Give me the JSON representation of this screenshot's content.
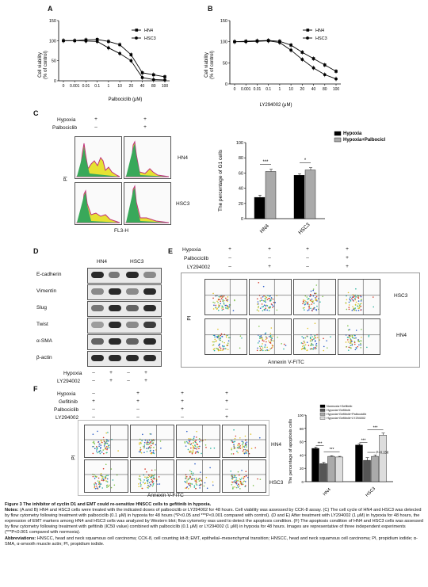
{
  "figure": {
    "panel_a": {
      "label": "A",
      "ylabel_line1": "Cell viability",
      "ylabel_line2": "(% of control)",
      "xlabel": "Palbociclib (μM)"
    },
    "panel_b": {
      "label": "B",
      "ylabel_line1": "Cell viability",
      "ylabel_line2": "(% of control)",
      "xlabel": "LY294002 (μM)"
    },
    "panel_c": {
      "label": "C",
      "row_labels": [
        "Hypoxia",
        "Palbociclib"
      ],
      "col1_signs": [
        "+",
        "–"
      ],
      "col2_signs": [
        "+",
        "+"
      ],
      "cell_labels": [
        "HN4",
        "HSC3"
      ],
      "ylabel_flow": "PI",
      "xlabel_flow": "FL3-H",
      "bar_ylabel": "The percentage of G1 cells",
      "sig": [
        "***",
        "*"
      ]
    },
    "panel_d": {
      "label": "D",
      "col_labels": [
        "HN4",
        "HSC3"
      ],
      "proteins": [
        "E-cadherin",
        "Vimentin",
        "Slug",
        "Twist",
        "α-SMA",
        "β-actin"
      ],
      "rows": [
        {
          "name": "Hypoxia",
          "signs": [
            "–",
            "+",
            "–",
            "+"
          ]
        },
        {
          "name": "LY294002",
          "signs": [
            "–",
            "+",
            "–",
            "+"
          ]
        }
      ]
    },
    "panel_e": {
      "label": "E",
      "rows": [
        {
          "name": "Hypoxia",
          "signs": [
            "+",
            "+",
            "+",
            "+"
          ]
        },
        {
          "name": "Palbociclib",
          "signs": [
            "–",
            "–",
            "–",
            "+"
          ]
        },
        {
          "name": "LY294002",
          "signs": [
            "–",
            "+",
            "–",
            "+"
          ]
        }
      ],
      "cell_labels": [
        "HSC3",
        "HN4"
      ],
      "ylabel": "PI",
      "xlabel": "Annexin V-FITC"
    },
    "panel_f": {
      "label": "F",
      "rows": [
        {
          "name": "Hypoxia",
          "signs": [
            "–",
            "+",
            "+",
            "+"
          ]
        },
        {
          "name": "Gefitinib",
          "signs": [
            "+",
            "+",
            "+",
            "+"
          ]
        },
        {
          "name": "Palbociclib",
          "signs": [
            "–",
            "–",
            "+",
            "–"
          ]
        },
        {
          "name": "LY294002",
          "signs": [
            "–",
            "–",
            "–",
            "+"
          ]
        }
      ],
      "cell_labels": [
        "HN4",
        "HSC3"
      ],
      "ylabel": "PI",
      "xlabel": "Annexin V-FITC",
      "bar_ylabel": "The percentage of apoptosis cells",
      "legend": [
        "Normoxia+Gefitinib",
        "Hypoxia+Gefitinib",
        "Hypoxia+Gefitinib+Palbociclib",
        "Hypoxia+Gefitinib+LY294002"
      ],
      "sig": [
        "***",
        "***",
        "***",
        "***"
      ],
      "pnote": "P=0.158"
    }
  },
  "chart_data": [
    {
      "type": "line",
      "panel": "A",
      "xlabel": "Palbociclib (μM)",
      "ylabel": "Cell viability (% of control)",
      "x": [
        "0",
        "0.001",
        "0.01",
        "0.1",
        "1",
        "10",
        "20",
        "40",
        "80",
        "100"
      ],
      "ylim": [
        0,
        150
      ],
      "yticks": [
        0,
        50,
        100,
        150
      ],
      "series": [
        {
          "name": "HN4",
          "values": [
            100,
            100,
            102,
            103,
            98,
            90,
            65,
            20,
            15,
            10
          ],
          "color": "#000000",
          "marker": "square"
        },
        {
          "name": "HSC3",
          "values": [
            100,
            100,
            99,
            98,
            82,
            68,
            50,
            8,
            3,
            2
          ],
          "color": "#000000",
          "marker": "circle"
        }
      ]
    },
    {
      "type": "line",
      "panel": "B",
      "xlabel": "LY294002 (μM)",
      "ylabel": "Cell viability (% of control)",
      "x": [
        "0",
        "0.001",
        "0.01",
        "0.1",
        "1",
        "10",
        "20",
        "40",
        "80",
        "100"
      ],
      "ylim": [
        0,
        150
      ],
      "yticks": [
        0,
        50,
        100,
        150
      ],
      "series": [
        {
          "name": "HN4",
          "values": [
            100,
            101,
            102,
            103,
            101,
            92,
            75,
            60,
            45,
            30
          ],
          "color": "#000000",
          "marker": "square"
        },
        {
          "name": "HSC3",
          "values": [
            100,
            100,
            101,
            102,
            98,
            80,
            58,
            38,
            22,
            12
          ],
          "color": "#000000",
          "marker": "circle"
        }
      ]
    },
    {
      "type": "bar",
      "panel": "C",
      "ylabel": "The percentage of G1 cells",
      "categories": [
        "HN4",
        "HSC3"
      ],
      "ylim": [
        0,
        100
      ],
      "yticks": [
        0,
        20,
        40,
        60,
        80,
        100
      ],
      "series": [
        {
          "name": "Hypoxia",
          "values": [
            28,
            57
          ],
          "errors": [
            3,
            2
          ],
          "color": "#000000"
        },
        {
          "name": "Hypoxia+Palbociclib",
          "values": [
            62,
            64
          ],
          "errors": [
            3,
            3
          ],
          "color": "#aaaaaa"
        }
      ]
    },
    {
      "type": "bar",
      "panel": "F",
      "ylabel": "The percentage of apoptosis cells",
      "categories": [
        "HN4",
        "HSC3"
      ],
      "ylim": [
        0,
        100
      ],
      "yticks": [
        0,
        20,
        40,
        60,
        80,
        100
      ],
      "series": [
        {
          "name": "Normoxia+Gefitinib",
          "values": [
            50,
            55
          ],
          "errors": [
            2,
            2
          ],
          "color": "#000000"
        },
        {
          "name": "Hypoxia+Gefitinib",
          "values": [
            27,
            32
          ],
          "errors": [
            2,
            4
          ],
          "color": "#555555"
        },
        {
          "name": "Hypoxia+Gefitinib+Palbociclib",
          "values": [
            38,
            38
          ],
          "errors": [
            1,
            2
          ],
          "color": "#aaaaaa"
        },
        {
          "name": "Hypoxia+Gefitinib+LY294002",
          "values": [
            37,
            70
          ],
          "errors": [
            1,
            3
          ],
          "color": "#dddddd"
        }
      ]
    }
  ],
  "caption": {
    "title": "Figure 3 The inhibitor of cyclin D1 and EMT could re-sensitize HNSCC cells to gefitinib in hypoxia.",
    "notes_label": "Notes:",
    "notes": "(A and B) HN4 and HSC3 cells were treated with the indicated doses of palbociclib or LY294002 for 48 hours. Cell viability was assessed by CCK-8 assay. (C) The cell cycle of HN4 and HSC3 was detected by flow cytometry following treatment with palbociclib (0.1 μM) in hypoxia for 48 hours (*P<0.05 and ***P<0.001 compared with control). (D and E) After treatment with LY294002 (1 μM) in hypoxia for 48 hours, the expression of EMT markers among HN4 and HSC3 cells was analyzed by Western blot; flow cytometry was used to detect the apoptosis condition. (F) The apoptosis condition of HN4 and HSC3 cells was assessed by flow cytometry following treatment with gefitinib (IC50 value) combined with palbociclib (0.1 μM) or LY294002 (1 μM) in hypoxia for 48 hours. Images are representative of three independent experiments (***P<0.001 compared with normoxia).",
    "abbrev_label": "Abbreviations:",
    "abbrev": "HNSCC, head and neck squamous cell carcinoma; CCK-8, cell counting kit-8; EMT, epithelial–mesenchymal transition; HNSCC, head and neck squamous cell carcinoma; PI, propidium iodide; α-SMA, α-smooth muscle actin; PI, propidium iodide."
  }
}
